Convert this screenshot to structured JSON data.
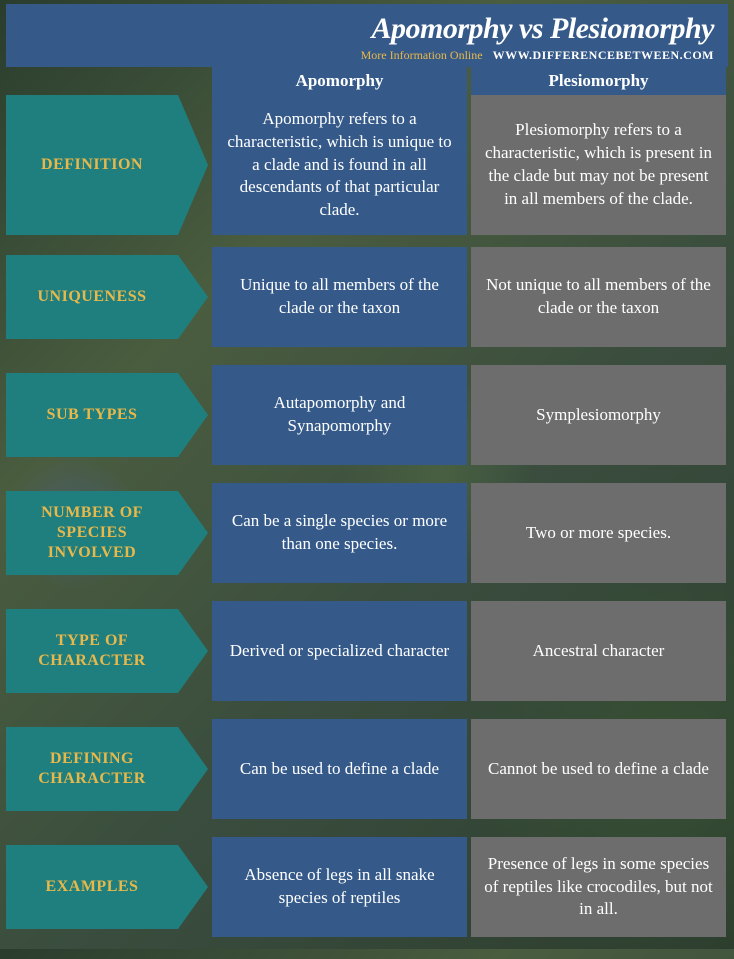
{
  "header": {
    "title": "Apomorphy vs Plesiomorphy",
    "subLeft": "More Information  Online",
    "subRight": "WWW.DIFFERENCEBETWEEN.COM"
  },
  "columns": {
    "a": "Apomorphy",
    "b": "Plesiomorphy"
  },
  "colors": {
    "headerBg": "#355a8a",
    "labelBg": "#1f7f7f",
    "labelText": "#e8b84a",
    "colA": "#355a8a",
    "colB": "#6d6d6d",
    "cellText": "#ffffff"
  },
  "rows": [
    {
      "label": "DEFINITION",
      "a": "Apomorphy refers to a characteristic, which is unique to a clade and is found in all descendants of that particular clade.",
      "b": "Plesiomorphy refers to a characteristic, which is present in the clade but may not be present in all members of the clade.",
      "tall": true
    },
    {
      "label": "UNIQUENESS",
      "a": "Unique to all members of the clade or the taxon",
      "b": "Not unique to all members of the clade or the taxon"
    },
    {
      "label": "SUB TYPES",
      "a": "Autapomorphy and Synapomorphy",
      "b": "Symplesiomorphy"
    },
    {
      "label": "NUMBER OF SPECIES INVOLVED",
      "a": "Can be a single species or more than one species.",
      "b": "Two or more species."
    },
    {
      "label": "TYPE OF CHARACTER",
      "a": "Derived or specialized character",
      "b": "Ancestral character"
    },
    {
      "label": "DEFINING CHARACTER",
      "a": "Can be used to define a clade",
      "b": "Cannot be used to define a clade"
    },
    {
      "label": "EXAMPLES",
      "a": "Absence of legs in all snake species of reptiles",
      "b": "Presence of legs in some species of reptiles like crocodiles, but not in all."
    }
  ]
}
